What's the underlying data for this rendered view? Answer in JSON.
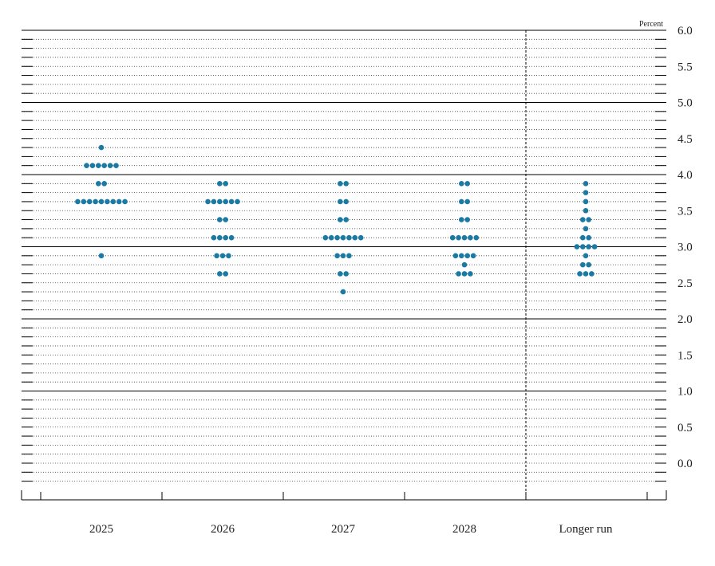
{
  "chart_data": {
    "type": "scatter",
    "unit_label": "Percent",
    "categories": [
      "2025",
      "2026",
      "2027",
      "2028",
      "Longer run"
    ],
    "y_ticks": [
      "6.0",
      "5.5",
      "5.0",
      "4.5",
      "4.0",
      "3.5",
      "3.0",
      "2.5",
      "2.0",
      "1.5",
      "1.0",
      "0.5",
      "0.0"
    ],
    "ylim": [
      -0.375,
      6.0
    ],
    "y_gridline_step": 0.125,
    "y_major_solid_lines": [
      6.0,
      5.0,
      4.0,
      3.0,
      2.0,
      1.0
    ],
    "separator_before": "Longer run",
    "dot_color": "#1a7aa3",
    "series": [
      {
        "category": "2025",
        "points": [
          {
            "y": 4.375,
            "count": 1
          },
          {
            "y": 4.125,
            "count": 6
          },
          {
            "y": 3.875,
            "count": 2
          },
          {
            "y": 3.625,
            "count": 9
          },
          {
            "y": 2.875,
            "count": 1
          }
        ]
      },
      {
        "category": "2026",
        "points": [
          {
            "y": 3.875,
            "count": 2
          },
          {
            "y": 3.625,
            "count": 6
          },
          {
            "y": 3.375,
            "count": 2
          },
          {
            "y": 3.125,
            "count": 4
          },
          {
            "y": 2.875,
            "count": 3
          },
          {
            "y": 2.625,
            "count": 2
          }
        ]
      },
      {
        "category": "2027",
        "points": [
          {
            "y": 3.875,
            "count": 2
          },
          {
            "y": 3.625,
            "count": 2
          },
          {
            "y": 3.375,
            "count": 2
          },
          {
            "y": 3.125,
            "count": 7
          },
          {
            "y": 2.875,
            "count": 3
          },
          {
            "y": 2.625,
            "count": 2
          },
          {
            "y": 2.375,
            "count": 1
          }
        ]
      },
      {
        "category": "2028",
        "points": [
          {
            "y": 3.875,
            "count": 2
          },
          {
            "y": 3.625,
            "count": 2
          },
          {
            "y": 3.375,
            "count": 2
          },
          {
            "y": 3.125,
            "count": 5
          },
          {
            "y": 2.875,
            "count": 4
          },
          {
            "y": 2.75,
            "count": 1
          },
          {
            "y": 2.625,
            "count": 3
          }
        ]
      },
      {
        "category": "Longer run",
        "points": [
          {
            "y": 3.875,
            "count": 1
          },
          {
            "y": 3.75,
            "count": 1
          },
          {
            "y": 3.625,
            "count": 1
          },
          {
            "y": 3.5,
            "count": 1
          },
          {
            "y": 3.375,
            "count": 2
          },
          {
            "y": 3.25,
            "count": 1
          },
          {
            "y": 3.125,
            "count": 2
          },
          {
            "y": 3.0,
            "count": 4
          },
          {
            "y": 2.875,
            "count": 1
          },
          {
            "y": 2.75,
            "count": 2
          },
          {
            "y": 2.625,
            "count": 3
          }
        ]
      }
    ]
  }
}
